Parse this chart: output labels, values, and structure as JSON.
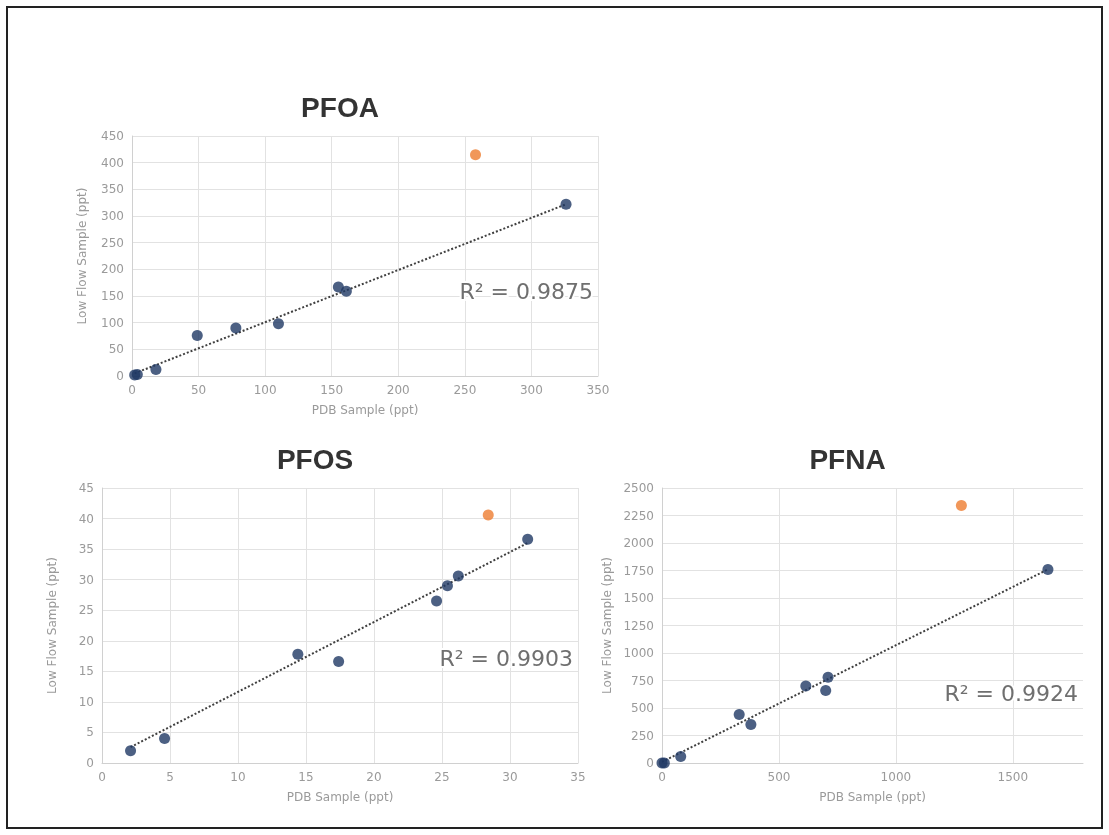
{
  "chart_data": [
    {
      "type": "scatter",
      "title": "PFOA",
      "xlabel": "PDB Sample (ppt)",
      "ylabel": "Low Flow Sample (ppt)",
      "xlim": [
        0,
        350
      ],
      "xticks": [
        0,
        50,
        100,
        150,
        200,
        250,
        300,
        350
      ],
      "ylim": [
        0,
        450
      ],
      "yticks": [
        0,
        50,
        100,
        150,
        200,
        250,
        300,
        350,
        400,
        450
      ],
      "grid": true,
      "annotations": [
        "R² = 0.9875"
      ],
      "series": [
        {
          "color": "#1f3864",
          "marker": "circle",
          "x": [
            2,
            4,
            18,
            49,
            78,
            110,
            155,
            161,
            326
          ],
          "values": [
            2,
            3,
            12,
            76,
            90,
            98,
            167,
            159,
            322
          ]
        },
        {
          "color": "#ed7d31",
          "marker": "circle",
          "x": [
            258
          ],
          "values": [
            415
          ]
        },
        {
          "type": "line",
          "color": "#404040",
          "line_style": "dotted",
          "x": [
            2,
            326
          ],
          "values": [
            5,
            322
          ]
        }
      ]
    },
    {
      "type": "scatter",
      "title": "PFOS",
      "xlabel": "PDB Sample (ppt)",
      "ylabel": "Low Flow Sample (ppt)",
      "xlim": [
        0,
        35
      ],
      "xticks": [
        0,
        5,
        10,
        15,
        20,
        25,
        30,
        35
      ],
      "ylim": [
        0,
        45
      ],
      "yticks": [
        0,
        5,
        10,
        15,
        20,
        25,
        30,
        35,
        40,
        45
      ],
      "grid": true,
      "annotations": [
        "R² = 0.9903"
      ],
      "series": [
        {
          "color": "#1f3864",
          "marker": "circle",
          "x": [
            2.1,
            4.6,
            14.4,
            17.4,
            24.6,
            25.4,
            26.2,
            31.3
          ],
          "values": [
            2,
            4,
            17.8,
            16.6,
            26.5,
            29,
            30.6,
            36.6
          ]
        },
        {
          "color": "#ed7d31",
          "marker": "circle",
          "x": [
            28.4
          ],
          "values": [
            40.6
          ]
        },
        {
          "type": "line",
          "color": "#404040",
          "line_style": "dotted",
          "x": [
            2.1,
            31.3
          ],
          "values": [
            2.6,
            36
          ]
        }
      ]
    },
    {
      "type": "scatter",
      "title": "PFNA",
      "xlabel": "PDB Sample (ppt)",
      "ylabel": "Low Flow Sample (ppt)",
      "xlim": [
        0,
        1800
      ],
      "xticks": [
        0,
        500,
        1000,
        1500
      ],
      "ylim": [
        0,
        2500
      ],
      "yticks": [
        0,
        250,
        500,
        750,
        1000,
        1250,
        1500,
        1750,
        2000,
        2250,
        2500
      ],
      "grid": true,
      "annotations": [
        "R² = 0.9924"
      ],
      "series": [
        {
          "color": "#1f3864",
          "marker": "circle",
          "x": [
            0,
            10,
            80,
            330,
            380,
            615,
            700,
            710,
            1650
          ],
          "values": [
            0,
            0,
            60,
            440,
            350,
            700,
            660,
            780,
            1760
          ]
        },
        {
          "color": "#ed7d31",
          "marker": "circle",
          "x": [
            1280
          ],
          "values": [
            2340
          ]
        },
        {
          "type": "line",
          "color": "#404040",
          "line_style": "dotted",
          "x": [
            0,
            1650
          ],
          "values": [
            10,
            1760
          ]
        }
      ]
    }
  ]
}
